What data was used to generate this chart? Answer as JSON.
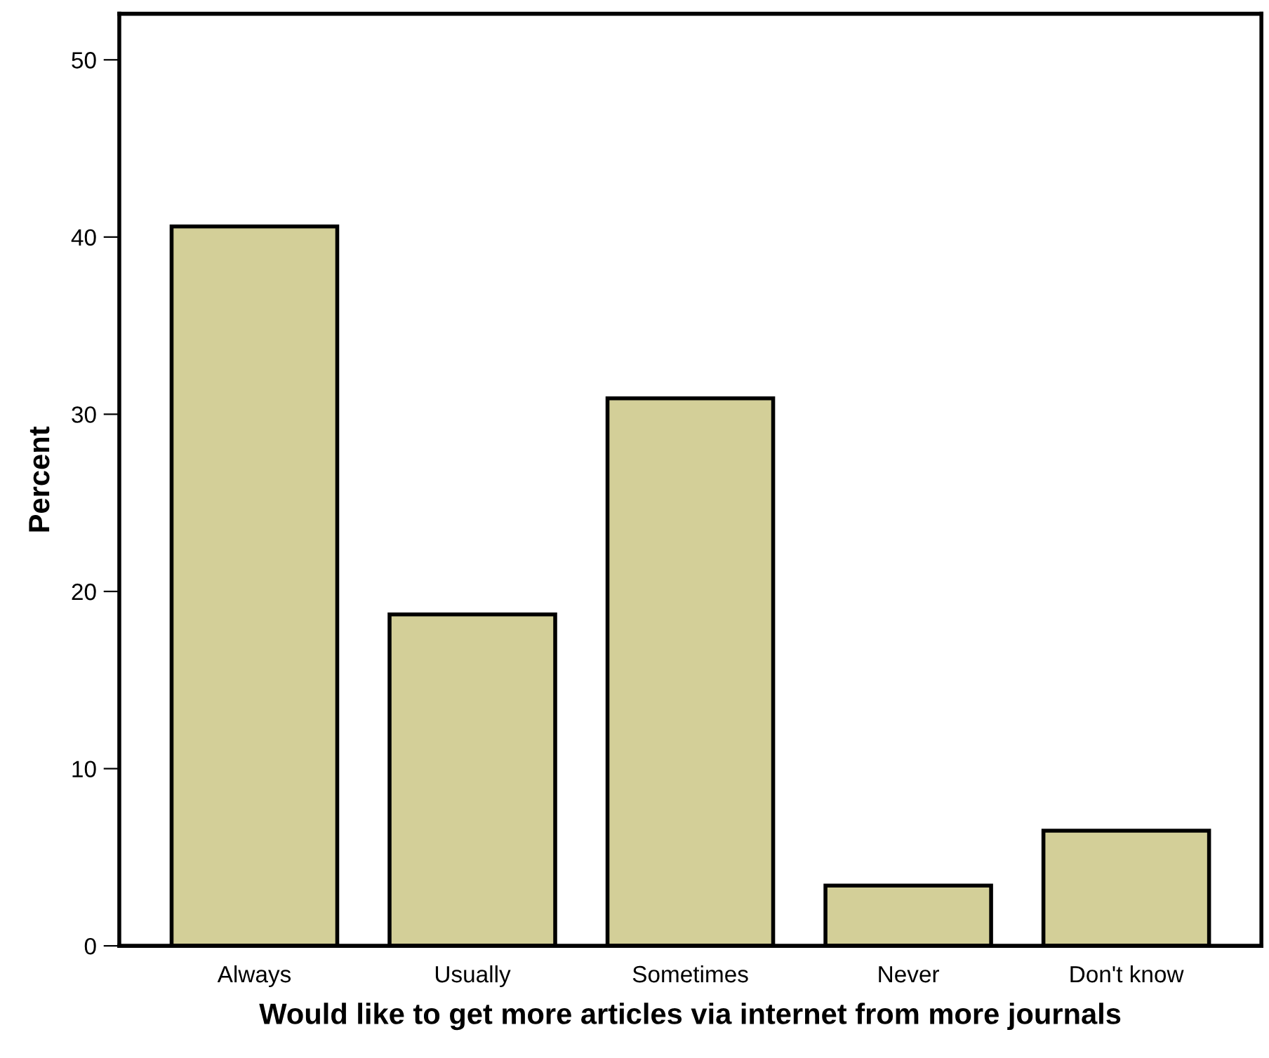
{
  "chart_data": {
    "type": "bar",
    "xlabel": "Would like to get more articles via internet from more journals",
    "ylabel": "Percent",
    "categories": [
      "Always",
      "Usually",
      "Sometimes",
      "Never",
      "Don't know"
    ],
    "values": [
      40.6,
      18.7,
      30.9,
      3.4,
      6.5
    ],
    "color": "#d3cf98",
    "ylim": [
      0,
      52.6
    ],
    "yticks": [
      0,
      10,
      20,
      30,
      40,
      50
    ],
    "grid": false,
    "legend": false
  }
}
